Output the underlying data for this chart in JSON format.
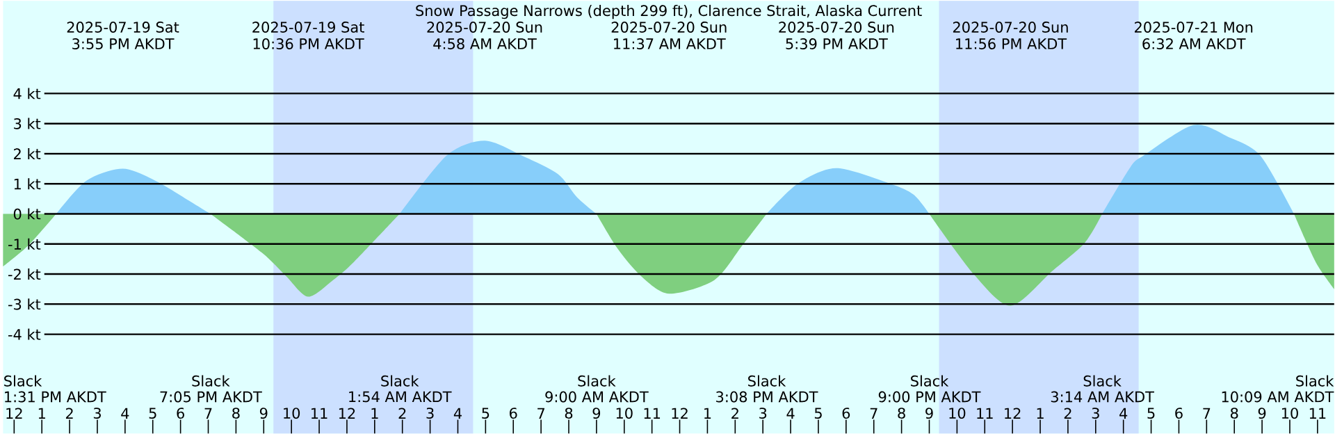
{
  "chart_data": {
    "type": "area",
    "title": "Snow Passage Narrows (depth 299 ft), Clarence Strait, Alaska Current",
    "x": [
      "2025-07-19T11:36",
      "2025-07-19T12:30",
      "2025-07-19T13:31",
      "2025-07-19T14:36",
      "2025-07-19T15:55",
      "2025-07-19T17:06",
      "2025-07-19T18:15",
      "2025-07-19T19:05",
      "2025-07-19T20:56",
      "2025-07-19T21:48",
      "2025-07-19T22:36",
      "2025-07-19T23:30",
      "2025-07-20T00:15",
      "2025-07-20T01:54",
      "2025-07-20T03:36",
      "2025-07-20T04:58",
      "2025-07-20T06:18",
      "2025-07-20T07:36",
      "2025-07-20T08:18",
      "2025-07-20T09:00",
      "2025-07-20T09:45",
      "2025-07-20T10:36",
      "2025-07-20T11:37",
      "2025-07-20T13:15",
      "2025-07-20T14:15",
      "2025-07-20T15:08",
      "2025-07-20T16:15",
      "2025-07-20T17:39",
      "2025-07-20T19:36",
      "2025-07-20T20:26",
      "2025-07-20T21:00",
      "2025-07-20T22:36",
      "2025-07-20T23:56",
      "2025-07-21T01:26",
      "2025-07-21T02:36",
      "2025-07-21T03:14",
      "2025-07-21T04:15",
      "2025-07-21T04:45",
      "2025-07-21T06:32",
      "2025-07-21T07:48",
      "2025-07-21T08:56",
      "2025-07-21T10:09",
      "2025-07-21T10:56",
      "2025-07-21T11:36"
    ],
    "series": [
      {
        "color": "#87cefa",
        "values": [
          null,
          null,
          0,
          1.1,
          1.5,
          1.1,
          0.47,
          0,
          null,
          null,
          null,
          null,
          null,
          0,
          1.94,
          2.43,
          1.94,
          1.33,
          0.55,
          0,
          null,
          null,
          null,
          null,
          null,
          0,
          1.0,
          1.52,
          1.0,
          0.64,
          0,
          null,
          null,
          null,
          null,
          0,
          1.55,
          1.95,
          2.95,
          2.55,
          1.94,
          0,
          null,
          null
        ]
      },
      {
        "color": "#7fcf7f",
        "values": [
          -1.75,
          -1.06,
          0,
          null,
          null,
          null,
          null,
          0,
          -1.29,
          -2.06,
          -2.75,
          -2.2,
          -1.6,
          0,
          null,
          null,
          null,
          null,
          null,
          0,
          -1.14,
          -2.06,
          -2.65,
          -2.2,
          -1.06,
          0,
          null,
          null,
          null,
          null,
          0,
          -2.0,
          -3.05,
          -1.9,
          -0.97,
          0,
          null,
          null,
          null,
          null,
          null,
          0,
          -1.6,
          -2.5
        ]
      }
    ],
    "xlim": [
      "2025-07-19T11:36",
      "2025-07-21T11:36"
    ],
    "xticks": [
      {
        "value": "2025-07-19T12:00",
        "label": "12"
      },
      {
        "value": "2025-07-19T13:00",
        "label": "1"
      },
      {
        "value": "2025-07-19T14:00",
        "label": "2"
      },
      {
        "value": "2025-07-19T15:00",
        "label": "3"
      },
      {
        "value": "2025-07-19T16:00",
        "label": "4"
      },
      {
        "value": "2025-07-19T17:00",
        "label": "5"
      },
      {
        "value": "2025-07-19T18:00",
        "label": "6"
      },
      {
        "value": "2025-07-19T19:00",
        "label": "7"
      },
      {
        "value": "2025-07-19T20:00",
        "label": "8"
      },
      {
        "value": "2025-07-19T21:00",
        "label": "9"
      },
      {
        "value": "2025-07-19T22:00",
        "label": "10"
      },
      {
        "value": "2025-07-19T23:00",
        "label": "11"
      },
      {
        "value": "2025-07-20T00:00",
        "label": "12"
      },
      {
        "value": "2025-07-20T01:00",
        "label": "1"
      },
      {
        "value": "2025-07-20T02:00",
        "label": "2"
      },
      {
        "value": "2025-07-20T03:00",
        "label": "3"
      },
      {
        "value": "2025-07-20T04:00",
        "label": "4"
      },
      {
        "value": "2025-07-20T05:00",
        "label": "5"
      },
      {
        "value": "2025-07-20T06:00",
        "label": "6"
      },
      {
        "value": "2025-07-20T07:00",
        "label": "7"
      },
      {
        "value": "2025-07-20T08:00",
        "label": "8"
      },
      {
        "value": "2025-07-20T09:00",
        "label": "9"
      },
      {
        "value": "2025-07-20T10:00",
        "label": "10"
      },
      {
        "value": "2025-07-20T11:00",
        "label": "11"
      },
      {
        "value": "2025-07-20T12:00",
        "label": "12"
      },
      {
        "value": "2025-07-20T13:00",
        "label": "1"
      },
      {
        "value": "2025-07-20T14:00",
        "label": "2"
      },
      {
        "value": "2025-07-20T15:00",
        "label": "3"
      },
      {
        "value": "2025-07-20T16:00",
        "label": "4"
      },
      {
        "value": "2025-07-20T17:00",
        "label": "5"
      },
      {
        "value": "2025-07-20T18:00",
        "label": "6"
      },
      {
        "value": "2025-07-20T19:00",
        "label": "7"
      },
      {
        "value": "2025-07-20T20:00",
        "label": "8"
      },
      {
        "value": "2025-07-20T21:00",
        "label": "9"
      },
      {
        "value": "2025-07-20T22:00",
        "label": "10"
      },
      {
        "value": "2025-07-20T23:00",
        "label": "11"
      },
      {
        "value": "2025-07-21T00:00",
        "label": "12"
      },
      {
        "value": "2025-07-21T01:00",
        "label": "1"
      },
      {
        "value": "2025-07-21T02:00",
        "label": "2"
      },
      {
        "value": "2025-07-21T03:00",
        "label": "3"
      },
      {
        "value": "2025-07-21T04:00",
        "label": "4"
      },
      {
        "value": "2025-07-21T05:00",
        "label": "5"
      },
      {
        "value": "2025-07-21T06:00",
        "label": "6"
      },
      {
        "value": "2025-07-21T07:00",
        "label": "7"
      },
      {
        "value": "2025-07-21T08:00",
        "label": "8"
      },
      {
        "value": "2025-07-21T09:00",
        "label": "9"
      },
      {
        "value": "2025-07-21T10:00",
        "label": "10"
      },
      {
        "value": "2025-07-21T11:00",
        "label": "11"
      }
    ],
    "ylim": [
      -7.3,
      7.08
    ],
    "yticks": [
      {
        "value": -4,
        "label": "-4 kt"
      },
      {
        "value": -3,
        "label": "-3 kt"
      },
      {
        "value": -2,
        "label": "-2 kt"
      },
      {
        "value": -1,
        "label": "-1 kt"
      },
      {
        "value": 0,
        "label": "0 kt"
      },
      {
        "value": 1,
        "label": "1 kt"
      },
      {
        "value": 2,
        "label": "2 kt"
      },
      {
        "value": 3,
        "label": "3 kt"
      },
      {
        "value": 4,
        "label": "4 kt"
      }
    ],
    "grid": "y",
    "bands": [
      {
        "axis": "x",
        "from": "2025-07-19T21:21",
        "to": "2025-07-20T04:33",
        "color": "#cce0ff"
      },
      {
        "axis": "x",
        "from": "2025-07-20T21:21",
        "to": "2025-07-21T04:33",
        "color": "#cce0ff"
      }
    ],
    "annotations": [
      "2025-07-19 Sat",
      "3:55 PM AKDT",
      "2025-07-19 Sat",
      "10:36 PM AKDT",
      "2025-07-20 Sun",
      "4:58 AM AKDT",
      "2025-07-20 Sun",
      "11:37 AM AKDT",
      "2025-07-20 Sun",
      "5:39 PM AKDT",
      "2025-07-20 Sun",
      "11:56 PM AKDT",
      "2025-07-21 Mon",
      "6:32 AM AKDT",
      "Slack",
      "1:31 PM AKDT",
      "Slack",
      "7:05 PM AKDT",
      "Slack",
      "1:54 AM AKDT",
      "Slack",
      "9:00 AM AKDT",
      "Slack",
      "3:08 PM AKDT",
      "Slack",
      "9:00 PM AKDT",
      "Slack",
      "3:14 AM AKDT",
      "Slack",
      "10:09 AM AKDT"
    ]
  }
}
